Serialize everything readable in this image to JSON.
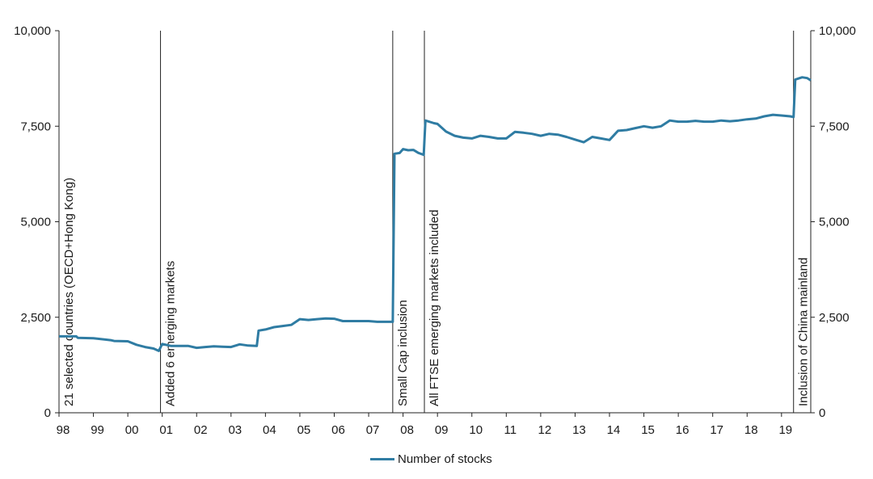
{
  "colors": {
    "series": "#2f7ca3",
    "axis": "#222222",
    "text": "#1a1a1a"
  },
  "chart_data": {
    "type": "line",
    "title": "",
    "xlabel": "",
    "ylabel": "",
    "ylim": [
      0,
      10000
    ],
    "xlim": [
      1998.0,
      2019.85
    ],
    "y_ticks": [
      0,
      2500,
      5000,
      7500,
      10000
    ],
    "y_tick_labels": [
      "0",
      "2,500",
      "5,000",
      "7,500",
      "10,000"
    ],
    "x_ticks": [
      1998,
      1999,
      2000,
      2001,
      2002,
      2003,
      2004,
      2005,
      2006,
      2007,
      2008,
      2009,
      2010,
      2011,
      2012,
      2013,
      2014,
      2015,
      2016,
      2017,
      2018,
      2019
    ],
    "x_tick_labels": [
      "98",
      "99",
      "00",
      "01",
      "02",
      "03",
      "04",
      "05",
      "06",
      "07",
      "08",
      "09",
      "10",
      "11",
      "12",
      "13",
      "14",
      "15",
      "16",
      "17",
      "18",
      "19"
    ],
    "secondary_y_axis": true,
    "grid": false,
    "legend_position": "bottom",
    "series": [
      {
        "name": "Number of stocks",
        "x": [
          1998.0,
          1998.5,
          1998.55,
          1999.0,
          1999.5,
          1999.6,
          2000.0,
          2000.25,
          2000.5,
          2000.75,
          2000.9,
          2001.0,
          2001.25,
          2001.75,
          2002.0,
          2002.25,
          2002.5,
          2002.75,
          2003.0,
          2003.25,
          2003.5,
          2003.75,
          2003.8,
          2004.0,
          2004.25,
          2004.5,
          2004.75,
          2005.0,
          2005.25,
          2005.5,
          2005.75,
          2006.0,
          2006.25,
          2006.5,
          2006.75,
          2007.0,
          2007.25,
          2007.5,
          2007.7,
          2007.75,
          2007.9,
          2008.0,
          2008.15,
          2008.3,
          2008.45,
          2008.6,
          2008.65,
          2008.9,
          2009.0,
          2009.25,
          2009.5,
          2009.75,
          2010.0,
          2010.25,
          2010.5,
          2010.75,
          2011.0,
          2011.25,
          2011.5,
          2011.75,
          2012.0,
          2012.25,
          2012.5,
          2012.75,
          2013.0,
          2013.25,
          2013.5,
          2013.75,
          2014.0,
          2014.25,
          2014.5,
          2014.75,
          2015.0,
          2015.25,
          2015.5,
          2015.75,
          2016.0,
          2016.25,
          2016.5,
          2016.75,
          2017.0,
          2017.25,
          2017.5,
          2017.75,
          2018.0,
          2018.25,
          2018.5,
          2018.75,
          2019.0,
          2019.25,
          2019.35,
          2019.4,
          2019.5,
          2019.6,
          2019.75,
          2019.85
        ],
        "values": [
          2000,
          2000,
          1960,
          1950,
          1900,
          1880,
          1870,
          1780,
          1720,
          1680,
          1620,
          1800,
          1750,
          1750,
          1700,
          1720,
          1740,
          1730,
          1720,
          1790,
          1760,
          1750,
          2150,
          2180,
          2240,
          2270,
          2300,
          2450,
          2430,
          2450,
          2470,
          2460,
          2400,
          2400,
          2400,
          2400,
          2380,
          2380,
          2380,
          6780,
          6800,
          6900,
          6870,
          6880,
          6800,
          6750,
          7650,
          7580,
          7560,
          7360,
          7250,
          7200,
          7180,
          7250,
          7220,
          7180,
          7180,
          7350,
          7330,
          7300,
          7250,
          7300,
          7280,
          7220,
          7150,
          7080,
          7220,
          7180,
          7140,
          7380,
          7400,
          7450,
          7500,
          7460,
          7500,
          7650,
          7620,
          7620,
          7640,
          7620,
          7620,
          7650,
          7630,
          7650,
          7680,
          7700,
          7760,
          7800,
          7780,
          7760,
          7740,
          8720,
          8750,
          8780,
          8760,
          8700
        ]
      }
    ],
    "annotations": [
      {
        "x": 1998.0,
        "label": "21 selected countries (OECD+Hong Kong)"
      },
      {
        "x": 2000.95,
        "label": "Added 6 emerging markets"
      },
      {
        "x": 2007.7,
        "label": "Small Cap inclusion"
      },
      {
        "x": 2008.62,
        "label": "All FTSE emerging markets included"
      },
      {
        "x": 2019.35,
        "label": "Inclusion of China mainland"
      }
    ]
  }
}
